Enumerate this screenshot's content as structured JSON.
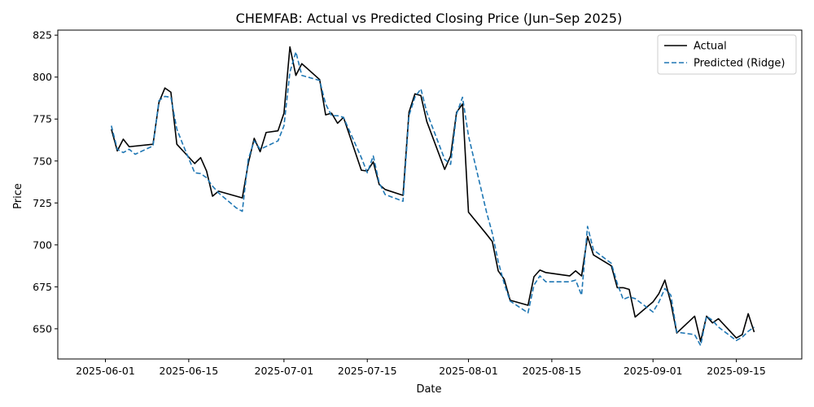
{
  "chart_data": {
    "type": "line",
    "title": "CHEMFAB: Actual vs Predicted Closing Price (Jun–Sep 2025)",
    "xlabel": "Date",
    "ylabel": "Price",
    "xlim": [
      "2025-05-24",
      "2025-09-26"
    ],
    "ylim": [
      632,
      828
    ],
    "x_ticks": [
      "2025-06-01",
      "2025-06-15",
      "2025-07-01",
      "2025-07-15",
      "2025-08-01",
      "2025-08-15",
      "2025-09-01",
      "2025-09-15"
    ],
    "y_ticks": [
      650,
      675,
      700,
      725,
      750,
      775,
      800,
      825
    ],
    "grid": false,
    "legend_position": "top-right",
    "series": [
      {
        "name": "Actual",
        "color": "#000000",
        "style": "solid",
        "points": [
          [
            "2025-06-02",
            769
          ],
          [
            "2025-06-03",
            756
          ],
          [
            "2025-06-04",
            763
          ],
          [
            "2025-06-05",
            758.5
          ],
          [
            "2025-06-09",
            760
          ],
          [
            "2025-06-10",
            785
          ],
          [
            "2025-06-11",
            793.5
          ],
          [
            "2025-06-12",
            791
          ],
          [
            "2025-06-13",
            760
          ],
          [
            "2025-06-16",
            748.5
          ],
          [
            "2025-06-17",
            752
          ],
          [
            "2025-06-18",
            744
          ],
          [
            "2025-06-19",
            729
          ],
          [
            "2025-06-20",
            732
          ],
          [
            "2025-06-24",
            728
          ],
          [
            "2025-06-25",
            748.5
          ],
          [
            "2025-06-26",
            763.5
          ],
          [
            "2025-06-27",
            755.5
          ],
          [
            "2025-06-28",
            767
          ],
          [
            "2025-06-30",
            768
          ],
          [
            "2025-07-01",
            778.5
          ],
          [
            "2025-07-02",
            818
          ],
          [
            "2025-07-03",
            801
          ],
          [
            "2025-07-04",
            808
          ],
          [
            "2025-07-07",
            798.5
          ],
          [
            "2025-07-08",
            777.5
          ],
          [
            "2025-07-09",
            778.5
          ],
          [
            "2025-07-10",
            772.5
          ],
          [
            "2025-07-11",
            776
          ],
          [
            "2025-07-14",
            744.5
          ],
          [
            "2025-07-15",
            744
          ],
          [
            "2025-07-16",
            749.5
          ],
          [
            "2025-07-17",
            736
          ],
          [
            "2025-07-18",
            733
          ],
          [
            "2025-07-21",
            729.5
          ],
          [
            "2025-07-22",
            779
          ],
          [
            "2025-07-23",
            790
          ],
          [
            "2025-07-24",
            789
          ],
          [
            "2025-07-25",
            773.5
          ],
          [
            "2025-07-28",
            745
          ],
          [
            "2025-07-29",
            753
          ],
          [
            "2025-07-30",
            779
          ],
          [
            "2025-07-31",
            784
          ],
          [
            "2025-08-01",
            719.5
          ],
          [
            "2025-08-04",
            706.5
          ],
          [
            "2025-08-05",
            702
          ],
          [
            "2025-08-06",
            684.5
          ],
          [
            "2025-08-07",
            679.5
          ],
          [
            "2025-08-08",
            667
          ],
          [
            "2025-08-11",
            664
          ],
          [
            "2025-08-12",
            681
          ],
          [
            "2025-08-13",
            685
          ],
          [
            "2025-08-14",
            683.5
          ],
          [
            "2025-08-18",
            681.5
          ],
          [
            "2025-08-19",
            684.5
          ],
          [
            "2025-08-20",
            681.5
          ],
          [
            "2025-08-21",
            705
          ],
          [
            "2025-08-22",
            694
          ],
          [
            "2025-08-25",
            687.5
          ],
          [
            "2025-08-26",
            674.5
          ],
          [
            "2025-08-27",
            674.5
          ],
          [
            "2025-08-28",
            673.5
          ],
          [
            "2025-08-29",
            657
          ],
          [
            "2025-09-01",
            666
          ],
          [
            "2025-09-02",
            671
          ],
          [
            "2025-09-03",
            679
          ],
          [
            "2025-09-04",
            665.5
          ],
          [
            "2025-09-05",
            647.5
          ],
          [
            "2025-09-08",
            657.5
          ],
          [
            "2025-09-09",
            642.5
          ],
          [
            "2025-09-10",
            657.5
          ],
          [
            "2025-09-11",
            653.5
          ],
          [
            "2025-09-12",
            656
          ],
          [
            "2025-09-15",
            644.5
          ],
          [
            "2025-09-16",
            646.5
          ],
          [
            "2025-09-17",
            659
          ],
          [
            "2025-09-18",
            648
          ]
        ]
      },
      {
        "name": "Predicted (Ridge)",
        "color": "#1f77b4",
        "style": "dashed",
        "points": [
          [
            "2025-06-02",
            771
          ],
          [
            "2025-06-03",
            757
          ],
          [
            "2025-06-04",
            755
          ],
          [
            "2025-06-05",
            757
          ],
          [
            "2025-06-06",
            754
          ],
          [
            "2025-06-09",
            759
          ],
          [
            "2025-06-10",
            786
          ],
          [
            "2025-06-11",
            788.5
          ],
          [
            "2025-06-12",
            788
          ],
          [
            "2025-06-13",
            769
          ],
          [
            "2025-06-14",
            760
          ],
          [
            "2025-06-16",
            743
          ],
          [
            "2025-06-17",
            742.5
          ],
          [
            "2025-06-18",
            740
          ],
          [
            "2025-06-19",
            735
          ],
          [
            "2025-06-20",
            731
          ],
          [
            "2025-06-23",
            722
          ],
          [
            "2025-06-24",
            720
          ],
          [
            "2025-06-25",
            751
          ],
          [
            "2025-06-26",
            762
          ],
          [
            "2025-06-27",
            757
          ],
          [
            "2025-06-30",
            762
          ],
          [
            "2025-07-01",
            771
          ],
          [
            "2025-07-02",
            803
          ],
          [
            "2025-07-03",
            815
          ],
          [
            "2025-07-04",
            801
          ],
          [
            "2025-07-07",
            798
          ],
          [
            "2025-07-08",
            784
          ],
          [
            "2025-07-09",
            777
          ],
          [
            "2025-07-10",
            777
          ],
          [
            "2025-07-11",
            776
          ],
          [
            "2025-07-14",
            752
          ],
          [
            "2025-07-15",
            743
          ],
          [
            "2025-07-16",
            753
          ],
          [
            "2025-07-17",
            737
          ],
          [
            "2025-07-18",
            730
          ],
          [
            "2025-07-21",
            726
          ],
          [
            "2025-07-22",
            777
          ],
          [
            "2025-07-23",
            788
          ],
          [
            "2025-07-24",
            793
          ],
          [
            "2025-07-25",
            779
          ],
          [
            "2025-07-28",
            751
          ],
          [
            "2025-07-29",
            748
          ],
          [
            "2025-07-30",
            778
          ],
          [
            "2025-07-31",
            788
          ],
          [
            "2025-08-01",
            765
          ],
          [
            "2025-08-04",
            720
          ],
          [
            "2025-08-05",
            707
          ],
          [
            "2025-08-06",
            690
          ],
          [
            "2025-08-07",
            677
          ],
          [
            "2025-08-08",
            666.5
          ],
          [
            "2025-08-11",
            659.5
          ],
          [
            "2025-08-12",
            676
          ],
          [
            "2025-08-13",
            681.5
          ],
          [
            "2025-08-14",
            678
          ],
          [
            "2025-08-18",
            678
          ],
          [
            "2025-08-19",
            679
          ],
          [
            "2025-08-20",
            670
          ],
          [
            "2025-08-21",
            711
          ],
          [
            "2025-08-22",
            697
          ],
          [
            "2025-08-25",
            689
          ],
          [
            "2025-08-26",
            677
          ],
          [
            "2025-08-27",
            667.5
          ],
          [
            "2025-08-28",
            669
          ],
          [
            "2025-08-29",
            668
          ],
          [
            "2025-09-01",
            660
          ],
          [
            "2025-09-02",
            666
          ],
          [
            "2025-09-03",
            674
          ],
          [
            "2025-09-04",
            670
          ],
          [
            "2025-09-05",
            648
          ],
          [
            "2025-09-08",
            646.5
          ],
          [
            "2025-09-09",
            640
          ],
          [
            "2025-09-10",
            657.5
          ],
          [
            "2025-09-11",
            655
          ],
          [
            "2025-09-12",
            651
          ],
          [
            "2025-09-15",
            643
          ],
          [
            "2025-09-16",
            645
          ],
          [
            "2025-09-17",
            648.5
          ],
          [
            "2025-09-18",
            651
          ]
        ]
      }
    ]
  }
}
